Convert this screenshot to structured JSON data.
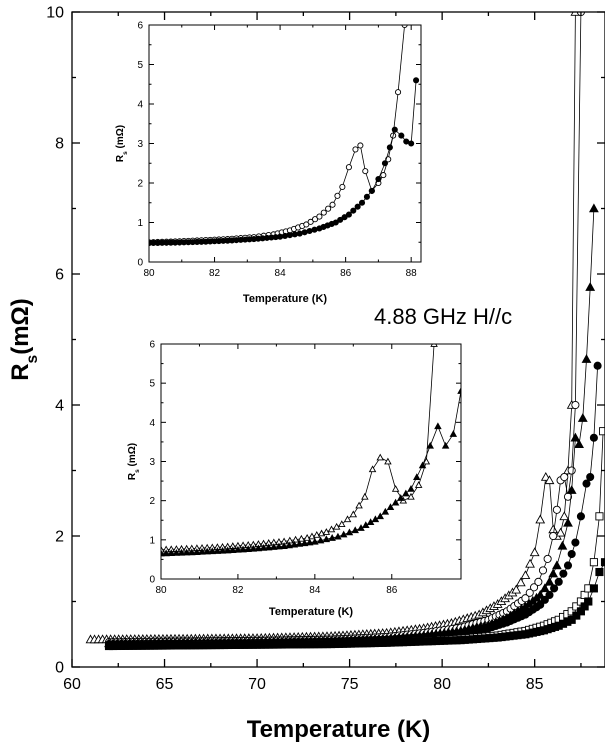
{
  "chart_data": [
    {
      "type": "scatter",
      "role": "main",
      "xlabel": "Temperature (K)",
      "ylabel": "R_s(mΩ)",
      "xlim": [
        60,
        88.8
      ],
      "ylim": [
        0,
        10
      ],
      "xticks": [
        60,
        65,
        70,
        75,
        80,
        85
      ],
      "yticks": [
        0,
        2,
        4,
        6,
        8,
        10
      ],
      "annotation": "4.88 GHz  H//c",
      "series": [
        {
          "marker": "open-triangle",
          "x": [
            61,
            66,
            70,
            74,
            77,
            79,
            80.5,
            82,
            83,
            84,
            84.5,
            85,
            85.3,
            85.6,
            85.8,
            86.0,
            86.2,
            86.4,
            86.6,
            86.8,
            87.0,
            87.2
          ],
          "y": [
            0.42,
            0.43,
            0.44,
            0.47,
            0.52,
            0.59,
            0.67,
            0.8,
            0.96,
            1.18,
            1.4,
            1.75,
            2.25,
            2.9,
            2.85,
            2.1,
            2.0,
            2.05,
            2.3,
            3.0,
            4.0,
            10.0
          ]
        },
        {
          "marker": "open-circle",
          "x": [
            62,
            66,
            70,
            74,
            77,
            79,
            81,
            82.5,
            83.5,
            84.5,
            85.2,
            85.7,
            86.0,
            86.2,
            86.4,
            86.6,
            86.8,
            87.0,
            87.2,
            87.5
          ],
          "y": [
            0.38,
            0.39,
            0.4,
            0.42,
            0.46,
            0.52,
            0.6,
            0.72,
            0.85,
            1.05,
            1.3,
            1.65,
            2.0,
            2.4,
            2.85,
            2.9,
            2.6,
            3.0,
            4.0,
            10.0
          ]
        },
        {
          "marker": "filled-triangle",
          "x": [
            62,
            66,
            70,
            74,
            77,
            79,
            81,
            82.5,
            83.5,
            84.5,
            85.3,
            85.8,
            86.2,
            86.5,
            86.8,
            87.0,
            87.2,
            87.4,
            87.6,
            87.8,
            88.0,
            88.2
          ],
          "y": [
            0.36,
            0.37,
            0.38,
            0.4,
            0.43,
            0.48,
            0.55,
            0.64,
            0.75,
            0.92,
            1.1,
            1.3,
            1.55,
            1.85,
            2.2,
            2.7,
            3.5,
            3.4,
            3.8,
            4.7,
            5.8,
            7.0
          ]
        },
        {
          "marker": "filled-circle",
          "x": [
            62,
            66,
            70,
            74,
            77,
            79,
            81,
            82.5,
            83.5,
            84.5,
            85.3,
            85.8,
            86.3,
            86.8,
            87.2,
            87.5,
            87.8,
            88.0,
            88.2,
            88.4
          ],
          "y": [
            0.35,
            0.36,
            0.37,
            0.39,
            0.42,
            0.46,
            0.52,
            0.59,
            0.68,
            0.8,
            0.95,
            1.1,
            1.3,
            1.55,
            1.9,
            2.3,
            2.8,
            2.9,
            3.5,
            4.6
          ]
        },
        {
          "marker": "open-square",
          "x": [
            62,
            66,
            70,
            74,
            77,
            79,
            81,
            83,
            84.5,
            85.5,
            86.3,
            87.0,
            87.5,
            87.9,
            88.2,
            88.5,
            88.7
          ],
          "y": [
            0.33,
            0.34,
            0.35,
            0.36,
            0.38,
            0.4,
            0.43,
            0.48,
            0.55,
            0.63,
            0.72,
            0.85,
            1.0,
            1.2,
            1.6,
            2.3,
            3.6
          ]
        },
        {
          "marker": "filled-square",
          "x": [
            62,
            66,
            70,
            74,
            77,
            79,
            81,
            83,
            84.5,
            85.5,
            86.3,
            87.0,
            87.5,
            87.9,
            88.2,
            88.5,
            88.8
          ],
          "y": [
            0.32,
            0.33,
            0.34,
            0.35,
            0.37,
            0.39,
            0.41,
            0.45,
            0.5,
            0.56,
            0.63,
            0.72,
            0.85,
            1.0,
            1.2,
            1.45,
            1.6
          ]
        }
      ]
    },
    {
      "type": "scatter",
      "role": "inset-top",
      "xlabel": "Temperature (K)",
      "ylabel": "R_s (mΩ)",
      "xlim": [
        80,
        88.3
      ],
      "ylim": [
        0,
        6
      ],
      "xticks": [
        80,
        82,
        84,
        86,
        88
      ],
      "yticks": [
        0,
        1,
        2,
        3,
        4,
        5,
        6
      ],
      "series": [
        {
          "marker": "open-circle",
          "x": [
            80.0,
            80.8,
            81.6,
            82.4,
            83.2,
            83.8,
            84.3,
            84.8,
            85.2,
            85.6,
            85.9,
            86.1,
            86.3,
            86.45,
            86.6,
            86.8,
            87.0,
            87.15,
            87.3,
            87.45,
            87.6,
            87.8
          ],
          "y": [
            0.5,
            0.52,
            0.55,
            0.58,
            0.63,
            0.7,
            0.8,
            0.95,
            1.15,
            1.45,
            1.9,
            2.4,
            2.85,
            2.95,
            2.3,
            1.8,
            2.0,
            2.2,
            2.6,
            3.2,
            4.3,
            6.0
          ]
        },
        {
          "marker": "filled-circle",
          "x": [
            80.0,
            80.8,
            81.6,
            82.4,
            83.2,
            84.0,
            84.6,
            85.2,
            85.7,
            86.1,
            86.5,
            86.8,
            87.0,
            87.2,
            87.35,
            87.5,
            87.7,
            87.85,
            88.0,
            88.15
          ],
          "y": [
            0.48,
            0.49,
            0.51,
            0.54,
            0.58,
            0.64,
            0.72,
            0.85,
            1.0,
            1.2,
            1.5,
            1.8,
            2.1,
            2.5,
            2.9,
            3.35,
            3.2,
            3.05,
            3.0,
            4.6
          ]
        }
      ]
    },
    {
      "type": "scatter",
      "role": "inset-bottom",
      "xlabel": "Temperature (K)",
      "ylabel": "R_s (mΩ)",
      "xlim": [
        80,
        87.8
      ],
      "ylim": [
        0,
        6
      ],
      "xticks": [
        80,
        82,
        84,
        86
      ],
      "yticks": [
        0,
        1,
        2,
        3,
        4,
        5,
        6
      ],
      "series": [
        {
          "marker": "open-triangle",
          "x": [
            80.0,
            80.8,
            81.6,
            82.4,
            83.2,
            83.8,
            84.3,
            84.7,
            85.0,
            85.3,
            85.5,
            85.7,
            85.9,
            86.1,
            86.3,
            86.5,
            86.7,
            86.9,
            87.1
          ],
          "y": [
            0.75,
            0.78,
            0.82,
            0.88,
            0.96,
            1.05,
            1.2,
            1.4,
            1.65,
            2.1,
            2.8,
            3.1,
            3.0,
            2.3,
            2.0,
            2.1,
            2.4,
            3.0,
            6.0
          ]
        },
        {
          "marker": "filled-triangle",
          "x": [
            80.0,
            80.8,
            81.6,
            82.4,
            83.2,
            84.0,
            84.6,
            85.2,
            85.7,
            86.1,
            86.5,
            86.8,
            87.0,
            87.2,
            87.4,
            87.6,
            87.8
          ],
          "y": [
            0.65,
            0.68,
            0.72,
            0.77,
            0.84,
            0.95,
            1.08,
            1.3,
            1.6,
            1.95,
            2.3,
            2.9,
            3.4,
            3.9,
            3.4,
            3.7,
            4.8
          ]
        }
      ]
    }
  ]
}
